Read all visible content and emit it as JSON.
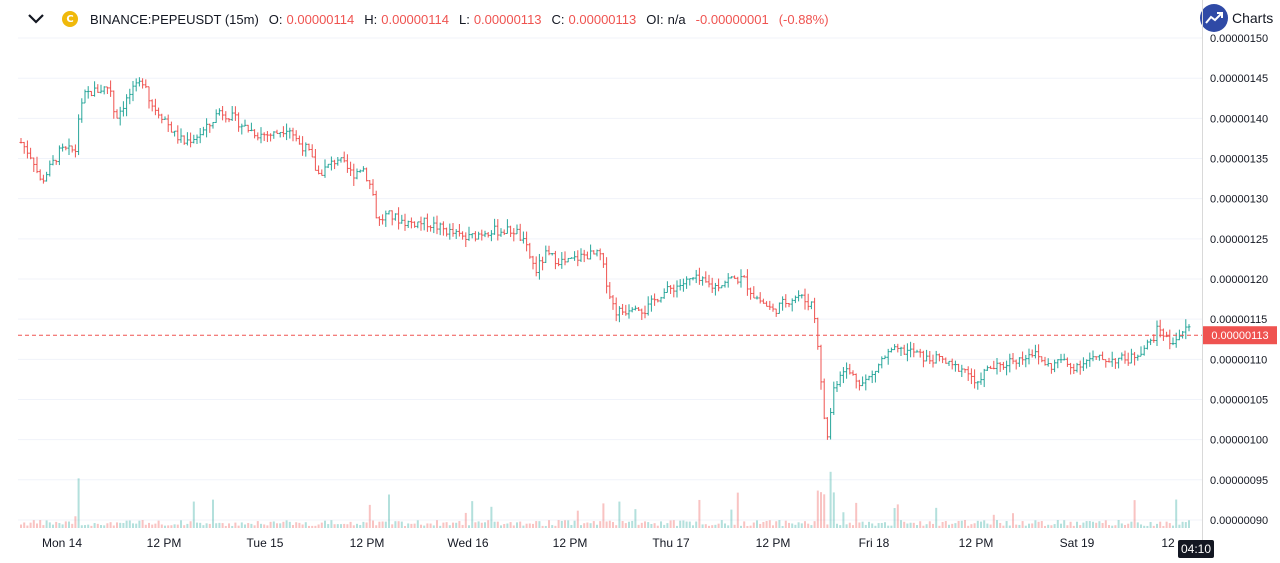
{
  "legend": {
    "symbol": "BINANCE:PEPEUSDT (15m)",
    "o_label": "O:",
    "o_value": "0.00000114",
    "h_label": "H:",
    "h_value": "0.00000114",
    "l_label": "L:",
    "l_value": "0.00000113",
    "c_label": "C:",
    "c_value": "0.00000113",
    "oi_label": "OI:",
    "oi_value": "n/a",
    "change": "-0.00000001",
    "change_pct": "(-0.88%)"
  },
  "branding": {
    "label": "Charts",
    "icon": "trend-chart-icon"
  },
  "symbol_icon": {
    "letter": "C",
    "color": "#f0b90b"
  },
  "current_price": {
    "value": 1.13e-06,
    "label": "0.00000113"
  },
  "time_badge": "04:10",
  "colors": {
    "up": "#26a69a",
    "down": "#ef5350",
    "grid": "#f0f3fa",
    "axis_text": "#131722",
    "price_line": "#ef5350"
  },
  "chart_data": {
    "type": "ohlc-bar",
    "y_range": [
      8.9e-07,
      1.51e-06
    ],
    "y_ticks": [
      {
        "value": 1.5e-06,
        "label": "0.00000150"
      },
      {
        "value": 1.45e-06,
        "label": "0.00000145"
      },
      {
        "value": 1.4e-06,
        "label": "0.00000140"
      },
      {
        "value": 1.35e-06,
        "label": "0.00000135"
      },
      {
        "value": 1.3e-06,
        "label": "0.00000130"
      },
      {
        "value": 1.25e-06,
        "label": "0.00000125"
      },
      {
        "value": 1.2e-06,
        "label": "0.00000120"
      },
      {
        "value": 1.15e-06,
        "label": "0.00000115"
      },
      {
        "value": 1.1e-06,
        "label": "0.00000110"
      },
      {
        "value": 1.05e-06,
        "label": "0.00000105"
      },
      {
        "value": 1e-06,
        "label": "0.00000100"
      },
      {
        "value": 9.5e-07,
        "label": "0.00000095"
      },
      {
        "value": 9e-07,
        "label": "0.00000090"
      }
    ],
    "x_ticks": [
      "Mon 14",
      "12 PM",
      "Tue 15",
      "12 PM",
      "Wed 16",
      "12 PM",
      "Thu 17",
      "12 PM",
      "Fri 18",
      "12 PM",
      "Sat 19",
      "12"
    ],
    "path": [
      [
        0,
        1.37
      ],
      [
        0.012,
        1.35
      ],
      [
        0.02,
        1.32
      ],
      [
        0.04,
        1.36
      ],
      [
        0.055,
        1.36
      ],
      [
        0.058,
        1.4
      ],
      [
        0.065,
        1.43
      ],
      [
        0.09,
        1.44
      ],
      [
        0.095,
        1.4
      ],
      [
        0.11,
        1.43
      ],
      [
        0.125,
        1.45
      ],
      [
        0.13,
        1.42
      ],
      [
        0.145,
        1.4
      ],
      [
        0.155,
        1.38
      ],
      [
        0.165,
        1.37
      ],
      [
        0.18,
        1.38
      ],
      [
        0.19,
        1.39
      ],
      [
        0.2,
        1.41
      ],
      [
        0.215,
        1.4
      ],
      [
        0.225,
        1.39
      ],
      [
        0.24,
        1.38
      ],
      [
        0.255,
        1.38
      ],
      [
        0.27,
        1.39
      ],
      [
        0.28,
        1.37
      ],
      [
        0.29,
        1.36
      ],
      [
        0.3,
        1.33
      ],
      [
        0.32,
        1.35
      ],
      [
        0.335,
        1.33
      ],
      [
        0.345,
        1.34
      ],
      [
        0.355,
        1.31
      ],
      [
        0.36,
        1.27
      ],
      [
        0.37,
        1.28
      ],
      [
        0.39,
        1.27
      ],
      [
        0.41,
        1.27
      ],
      [
        0.43,
        1.26
      ],
      [
        0.45,
        1.25
      ],
      [
        0.47,
        1.26
      ],
      [
        0.49,
        1.26
      ],
      [
        0.5,
        1.26
      ],
      [
        0.51,
        1.24
      ],
      [
        0.52,
        1.21
      ],
      [
        0.53,
        1.23
      ],
      [
        0.55,
        1.22
      ],
      [
        0.57,
        1.23
      ],
      [
        0.585,
        1.23
      ],
      [
        0.595,
        1.18
      ],
      [
        0.6,
        1.16
      ],
      [
        0.61,
        1.16
      ],
      [
        0.62,
        1.17
      ],
      [
        0.63,
        1.16
      ],
      [
        0.645,
        1.18
      ],
      [
        0.66,
        1.19
      ],
      [
        0.68,
        1.2
      ],
      [
        0.7,
        1.19
      ],
      [
        0.715,
        1.2
      ],
      [
        0.73,
        1.2
      ],
      [
        0.74,
        1.18
      ],
      [
        0.75,
        1.17
      ],
      [
        0.76,
        1.16
      ],
      [
        0.77,
        1.17
      ],
      [
        0.785,
        1.18
      ],
      [
        0.795,
        1.17
      ],
      [
        0.8,
        1.17
      ],
      [
        0.805,
        1.12
      ],
      [
        0.81,
        1.04
      ],
      [
        0.815,
        1.0
      ],
      [
        0.82,
        1.06
      ],
      [
        0.83,
        1.09
      ],
      [
        0.84,
        1.08
      ],
      [
        0.85,
        1.07
      ],
      [
        0.86,
        1.08
      ],
      [
        0.87,
        1.1
      ],
      [
        0.88,
        1.11
      ],
      [
        0.9,
        1.11
      ],
      [
        0.915,
        1.1
      ],
      [
        0.93,
        1.1
      ],
      [
        0.94,
        1.09
      ],
      [
        0.95,
        1.09
      ],
      [
        0.96,
        1.08
      ],
      [
        0.965,
        1.06
      ],
      [
        0.97,
        1.08
      ],
      [
        0.98,
        1.09
      ],
      [
        0.99,
        1.09
      ],
      [
        1.0,
        1.1
      ],
      [
        1.01,
        1.1
      ],
      [
        1.02,
        1.11
      ],
      [
        1.03,
        1.1
      ],
      [
        1.04,
        1.09
      ],
      [
        1.05,
        1.1
      ],
      [
        1.06,
        1.09
      ],
      [
        1.08,
        1.1
      ],
      [
        1.1,
        1.1
      ],
      [
        1.12,
        1.1
      ],
      [
        1.13,
        1.11
      ],
      [
        1.14,
        1.12
      ],
      [
        1.15,
        1.14
      ],
      [
        1.16,
        1.12
      ],
      [
        1.17,
        1.13
      ],
      [
        1.18,
        1.14
      ]
    ],
    "path_note_units": "x = fraction of visible time span; y = price x 1e-6"
  }
}
